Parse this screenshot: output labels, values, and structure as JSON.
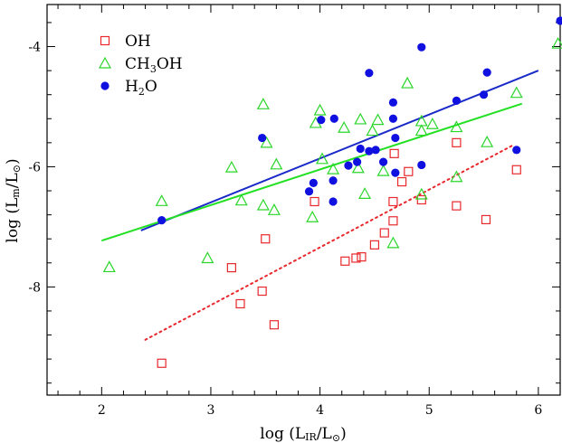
{
  "chart_data": {
    "type": "scatter",
    "xlabel": {
      "prefix": "log (L",
      "sub": "IR",
      "mid": "/L",
      "suffix": ")"
    },
    "ylabel": {
      "prefix": "log (L",
      "sub": "m",
      "mid": "/L",
      "suffix": ")"
    },
    "sun_symbol": "⊙",
    "xlim": [
      1.5,
      6.2
    ],
    "ylim": [
      -9.8,
      -3.3
    ],
    "xticks": [
      2,
      3,
      4,
      5,
      6
    ],
    "yticks": [
      -8,
      -6,
      -4
    ],
    "grid": false,
    "legend": {
      "position": "top-left",
      "entries": [
        {
          "text": "OH",
          "marker": "open-square",
          "color": "#e8282c"
        },
        {
          "text_parts": [
            "CH",
            "3",
            "OH"
          ],
          "marker": "open-triangle",
          "color": "#2ad62a"
        },
        {
          "text_parts": [
            "H",
            "2",
            "O"
          ],
          "marker": "filled-circle",
          "color": "#1010e0"
        }
      ]
    },
    "series": [
      {
        "name": "OH",
        "marker": "open-square",
        "color": "#e8282c",
        "points": [
          [
            2.55,
            -9.27
          ],
          [
            3.19,
            -7.68
          ],
          [
            3.27,
            -8.28
          ],
          [
            3.47,
            -8.07
          ],
          [
            3.5,
            -7.2
          ],
          [
            3.58,
            -8.63
          ],
          [
            3.95,
            -6.58
          ],
          [
            4.23,
            -7.57
          ],
          [
            4.33,
            -7.52
          ],
          [
            4.38,
            -7.5
          ],
          [
            4.5,
            -7.3
          ],
          [
            4.59,
            -7.1
          ],
          [
            4.67,
            -6.58
          ],
          [
            4.67,
            -6.9
          ],
          [
            4.68,
            -5.78
          ],
          [
            4.75,
            -6.25
          ],
          [
            4.81,
            -6.08
          ],
          [
            4.93,
            -6.55
          ],
          [
            5.25,
            -6.65
          ],
          [
            5.25,
            -5.6
          ],
          [
            5.52,
            -6.88
          ],
          [
            5.8,
            -6.05
          ]
        ]
      },
      {
        "name": "CH3OH",
        "marker": "open-triangle",
        "color": "#2ad62a",
        "points": [
          [
            2.07,
            -7.67
          ],
          [
            2.55,
            -6.57
          ],
          [
            2.97,
            -7.52
          ],
          [
            3.19,
            -6.01
          ],
          [
            3.28,
            -6.56
          ],
          [
            3.48,
            -6.64
          ],
          [
            3.48,
            -4.96
          ],
          [
            3.51,
            -5.6
          ],
          [
            3.58,
            -6.72
          ],
          [
            3.6,
            -5.96
          ],
          [
            3.93,
            -6.84
          ],
          [
            3.96,
            -5.27
          ],
          [
            4.0,
            -5.06
          ],
          [
            4.02,
            -5.87
          ],
          [
            4.12,
            -6.04
          ],
          [
            4.22,
            -5.35
          ],
          [
            4.35,
            -6.02
          ],
          [
            4.37,
            -5.21
          ],
          [
            4.41,
            -6.45
          ],
          [
            4.48,
            -5.4
          ],
          [
            4.53,
            -5.22
          ],
          [
            4.58,
            -6.07
          ],
          [
            4.67,
            -7.27
          ],
          [
            4.8,
            -4.61
          ],
          [
            4.93,
            -6.46
          ],
          [
            4.93,
            -5.24
          ],
          [
            4.93,
            -5.4
          ],
          [
            5.03,
            -5.29
          ],
          [
            5.25,
            -5.34
          ],
          [
            5.25,
            -6.17
          ],
          [
            5.53,
            -5.59
          ],
          [
            5.8,
            -4.77
          ],
          [
            6.18,
            -3.95
          ]
        ]
      },
      {
        "name": "H2O",
        "marker": "filled-circle",
        "color": "#1010e0",
        "points": [
          [
            2.55,
            -6.89
          ],
          [
            3.47,
            -5.52
          ],
          [
            3.9,
            -6.41
          ],
          [
            3.94,
            -6.27
          ],
          [
            4.01,
            -5.22
          ],
          [
            4.12,
            -6.23
          ],
          [
            4.12,
            -6.58
          ],
          [
            4.13,
            -5.2
          ],
          [
            4.26,
            -5.98
          ],
          [
            4.34,
            -5.92
          ],
          [
            4.37,
            -5.7
          ],
          [
            4.45,
            -4.44
          ],
          [
            4.45,
            -5.74
          ],
          [
            4.51,
            -5.72
          ],
          [
            4.58,
            -5.92
          ],
          [
            4.67,
            -5.2
          ],
          [
            4.67,
            -4.93
          ],
          [
            4.69,
            -6.1
          ],
          [
            4.69,
            -5.52
          ],
          [
            4.93,
            -5.97
          ],
          [
            4.93,
            -4.01
          ],
          [
            5.25,
            -4.9
          ],
          [
            5.5,
            -4.8
          ],
          [
            5.53,
            -4.43
          ],
          [
            5.8,
            -5.72
          ],
          [
            6.2,
            -3.57
          ]
        ]
      }
    ],
    "fit_lines": [
      {
        "series": "H2O",
        "style": "solid",
        "color": "#1a2ac8",
        "x": [
          2.36,
          6.0
        ],
        "y": [
          -7.06,
          -4.4
        ]
      },
      {
        "series": "CH3OH",
        "style": "solid",
        "color": "#22e022",
        "x": [
          2.0,
          5.85
        ],
        "y": [
          -7.23,
          -4.95
        ]
      },
      {
        "series": "OH",
        "style": "dotted",
        "color": "#e8282c",
        "x": [
          2.4,
          5.78
        ],
        "y": [
          -8.88,
          -5.63
        ]
      }
    ]
  }
}
